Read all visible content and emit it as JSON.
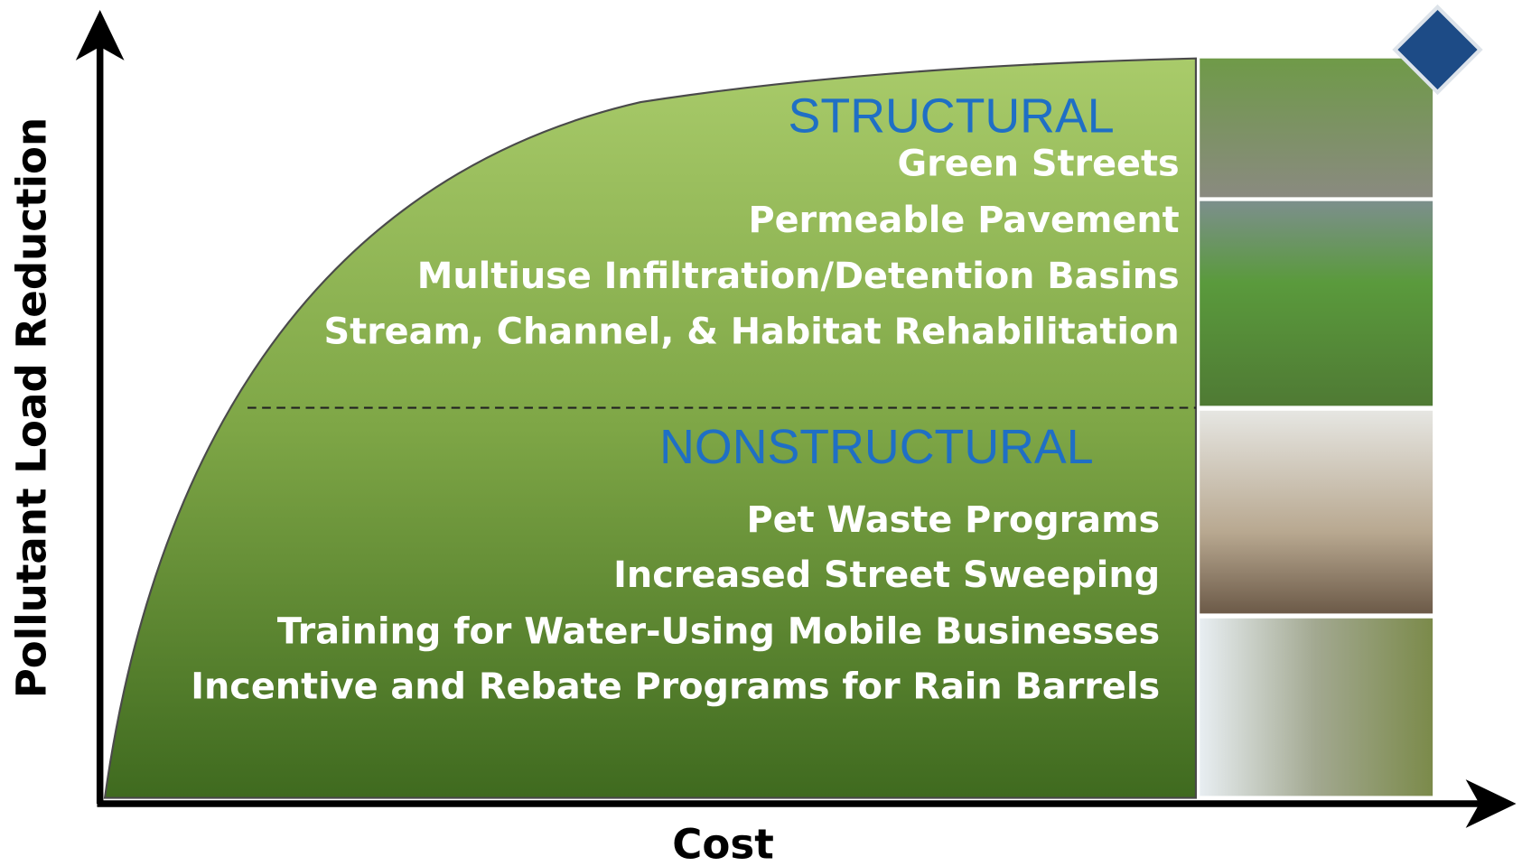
{
  "axes": {
    "y_label": "Pollutant Load Reduction",
    "x_label": "Cost"
  },
  "sections": [
    {
      "title": "STRUCTURAL",
      "items": [
        "Green Streets",
        "Permeable Pavement",
        "Multiuse Infiltration/Detention Basins",
        "Stream, Channel, & Habitat Rehabilitation"
      ]
    },
    {
      "title": "NONSTRUCTURAL",
      "items": [
        "Pet Waste Programs",
        "Increased Street Sweeping",
        "Training for Water-Using Mobile Businesses",
        "Incentive and Rebate Programs for Rain Barrels"
      ]
    }
  ]
}
